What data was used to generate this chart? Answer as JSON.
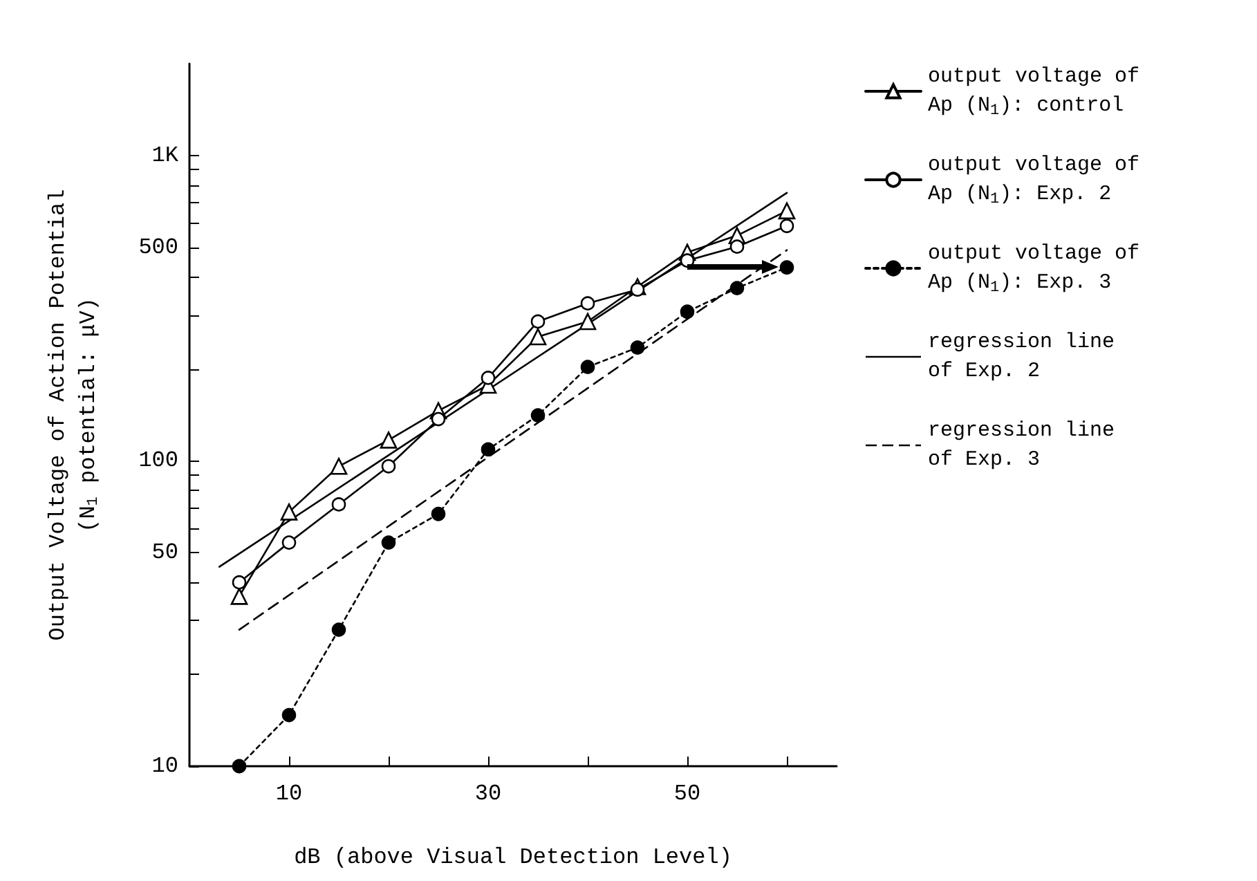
{
  "chart_data": {
    "type": "line",
    "xlabel": "dB (above Visual Detection Level)",
    "ylabel": "Output Voltage of Action Potential (N$_{1}$ potential: μV)",
    "x": [
      5,
      10,
      15,
      20,
      25,
      30,
      35,
      40,
      45,
      50,
      55,
      60
    ],
    "xlim": [
      0,
      65
    ],
    "xticks": [
      10,
      {
        "value": 20,
        "label": null
      },
      30,
      {
        "value": 40,
        "label": null
      },
      50,
      {
        "value": 60,
        "label": null
      }
    ],
    "ylim": [
      10,
      2000
    ],
    "yticks": [
      10,
      {
        "value": 20,
        "label": null
      },
      {
        "value": 30,
        "label": null
      },
      {
        "value": 40,
        "label": null
      },
      50,
      {
        "value": 60,
        "label": null
      },
      {
        "value": 70,
        "label": null
      },
      {
        "value": 80,
        "label": null
      },
      {
        "value": 90,
        "label": null
      },
      100,
      {
        "value": 200,
        "label": null
      },
      {
        "value": 300,
        "label": null
      },
      {
        "value": 400,
        "label": null
      },
      500,
      {
        "value": 600,
        "label": null
      },
      {
        "value": 700,
        "label": null
      },
      {
        "value": 800,
        "label": null
      },
      {
        "value": 900,
        "label": null
      },
      {
        "value": 1000,
        "label": "1K"
      }
    ],
    "log": "y",
    "grid": false,
    "legend": "right",
    "series": [
      {
        "name": "output voltage of Ap (N$_{1}$): control",
        "color": "#000000",
        "marker": "triangle",
        "line_style": "solid",
        "values": [
          36,
          68,
          96,
          117,
          146,
          177,
          255,
          286,
          372,
          482,
          547,
          659
        ]
      },
      {
        "name": "output voltage of Ap (N$_{1}$): Exp. 2",
        "color": "#000000",
        "marker": "circle",
        "line_style": "solid",
        "values": [
          40,
          54,
          72,
          96,
          137,
          187,
          286,
          328,
          364,
          453,
          503,
          588
        ]
      },
      {
        "name": "output voltage of Ap (N$_{1}$): Exp. 3",
        "color": "#000000",
        "marker": "circle",
        "line_style": "dotted",
        "values": [
          10,
          14.7,
          28,
          54,
          67,
          109,
          141,
          203,
          235,
          308,
          368,
          430
        ]
      },
      {
        "name": "regression line of Exp. 2",
        "color": "#000000",
        "marker": "none",
        "line_style": "solid",
        "x": [
          3,
          60
        ],
        "values": [
          45,
          755
        ]
      },
      {
        "name": "regression line of Exp. 3",
        "color": "#000000",
        "marker": "none",
        "line_style": "dashed",
        "x": [
          5,
          60
        ],
        "values": [
          28,
          490
        ]
      }
    ]
  }
}
